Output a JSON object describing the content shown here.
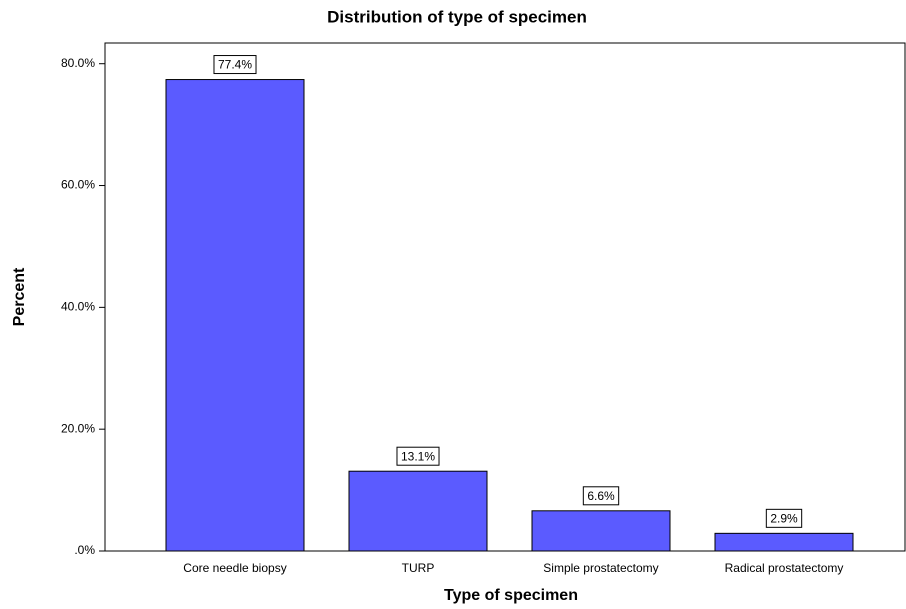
{
  "chart_data": {
    "type": "bar",
    "title": "Distribution of type of specimen",
    "x_label": "Type of specimen",
    "y_label": "Percent",
    "categories": [
      "Core needle biopsy",
      "TURP",
      "Simple prostatectomy",
      "Radical prostatectomy"
    ],
    "values": [
      77.4,
      13.1,
      6.6,
      2.9
    ],
    "value_labels": [
      "77.4%",
      "13.1%",
      "6.6%",
      "2.9%"
    ],
    "color": "#5b5bff",
    "ylim": [
      0,
      83.4
    ],
    "yticks": [
      {
        "value": 0,
        "label": ".0%"
      },
      {
        "value": 20,
        "label": "20.0%"
      },
      {
        "value": 40,
        "label": "40.0%"
      },
      {
        "value": 60,
        "label": "60.0%"
      },
      {
        "value": 80,
        "label": "80.0%"
      }
    ],
    "grid": false
  }
}
